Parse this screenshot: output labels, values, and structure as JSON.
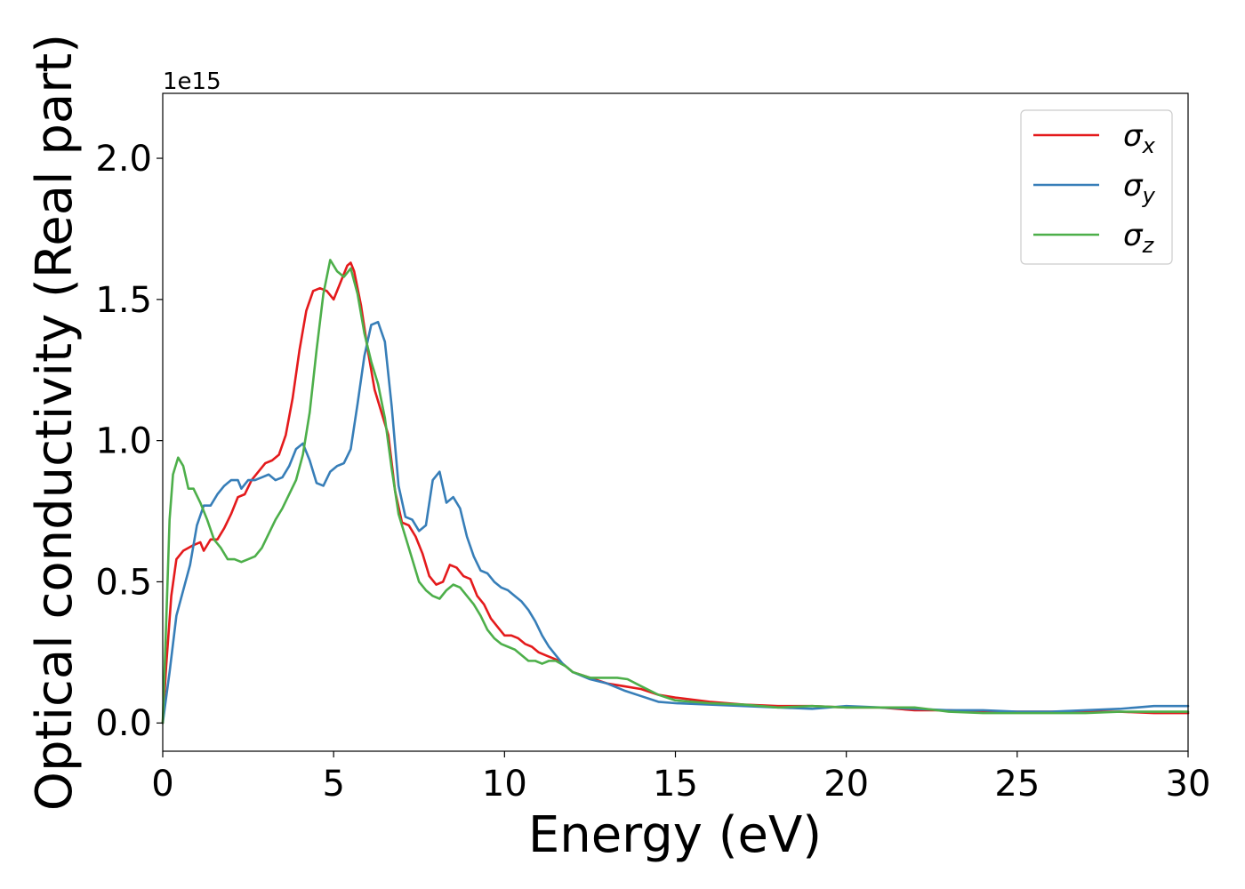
{
  "chart_data": {
    "type": "line",
    "title": "",
    "xlabel": "Energy (eV)",
    "ylabel": "Optical conductivity (Real part)",
    "y_offset_text": "1e15",
    "y_scale_factor": 1000000000000000.0,
    "xlim": [
      0,
      30
    ],
    "ylim": [
      -0.1,
      2.23
    ],
    "xticks": [
      0,
      5,
      10,
      15,
      20,
      25,
      30
    ],
    "xtick_labels": [
      "0",
      "5",
      "10",
      "15",
      "20",
      "25",
      "30"
    ],
    "yticks": [
      0.0,
      0.5,
      1.0,
      1.5,
      2.0
    ],
    "ytick_labels": [
      "0.0",
      "0.5",
      "1.0",
      "1.5",
      "2.0"
    ],
    "grid": false,
    "legend_position": "top-right",
    "series": [
      {
        "name": "σx",
        "legend_symbol": "σ",
        "legend_subscript": "x",
        "color": "#e41a1c",
        "points": [
          [
            0,
            0.0
          ],
          [
            0.1,
            0.2
          ],
          [
            0.25,
            0.45
          ],
          [
            0.4,
            0.58
          ],
          [
            0.6,
            0.61
          ],
          [
            0.9,
            0.63
          ],
          [
            1.1,
            0.64
          ],
          [
            1.2,
            0.61
          ],
          [
            1.4,
            0.65
          ],
          [
            1.6,
            0.65
          ],
          [
            1.8,
            0.69
          ],
          [
            2.0,
            0.74
          ],
          [
            2.2,
            0.8
          ],
          [
            2.4,
            0.81
          ],
          [
            2.6,
            0.86
          ],
          [
            2.8,
            0.89
          ],
          [
            3.0,
            0.92
          ],
          [
            3.2,
            0.93
          ],
          [
            3.4,
            0.95
          ],
          [
            3.6,
            1.02
          ],
          [
            3.8,
            1.15
          ],
          [
            4.0,
            1.32
          ],
          [
            4.2,
            1.46
          ],
          [
            4.4,
            1.53
          ],
          [
            4.6,
            1.54
          ],
          [
            4.8,
            1.53
          ],
          [
            5.0,
            1.5
          ],
          [
            5.2,
            1.56
          ],
          [
            5.4,
            1.62
          ],
          [
            5.5,
            1.63
          ],
          [
            5.6,
            1.6
          ],
          [
            5.8,
            1.48
          ],
          [
            6.0,
            1.32
          ],
          [
            6.2,
            1.18
          ],
          [
            6.4,
            1.1
          ],
          [
            6.6,
            1.02
          ],
          [
            6.8,
            0.82
          ],
          [
            7.0,
            0.71
          ],
          [
            7.2,
            0.7
          ],
          [
            7.4,
            0.66
          ],
          [
            7.6,
            0.6
          ],
          [
            7.8,
            0.52
          ],
          [
            8.0,
            0.49
          ],
          [
            8.2,
            0.5
          ],
          [
            8.4,
            0.56
          ],
          [
            8.6,
            0.55
          ],
          [
            8.8,
            0.52
          ],
          [
            9.0,
            0.51
          ],
          [
            9.2,
            0.45
          ],
          [
            9.4,
            0.42
          ],
          [
            9.6,
            0.37
          ],
          [
            9.8,
            0.34
          ],
          [
            10.0,
            0.31
          ],
          [
            10.2,
            0.31
          ],
          [
            10.4,
            0.3
          ],
          [
            10.6,
            0.28
          ],
          [
            10.8,
            0.27
          ],
          [
            11.0,
            0.25
          ],
          [
            11.2,
            0.24
          ],
          [
            11.4,
            0.23
          ],
          [
            11.6,
            0.22
          ],
          [
            12.0,
            0.18
          ],
          [
            12.5,
            0.16
          ],
          [
            13.0,
            0.14
          ],
          [
            13.5,
            0.13
          ],
          [
            14.0,
            0.12
          ],
          [
            14.5,
            0.1
          ],
          [
            15.0,
            0.09
          ],
          [
            16.0,
            0.075
          ],
          [
            17.0,
            0.065
          ],
          [
            18.0,
            0.06
          ],
          [
            19.0,
            0.06
          ],
          [
            20.0,
            0.055
          ],
          [
            21.0,
            0.055
          ],
          [
            22.0,
            0.045
          ],
          [
            23.0,
            0.045
          ],
          [
            24.0,
            0.04
          ],
          [
            25.0,
            0.04
          ],
          [
            26.0,
            0.04
          ],
          [
            27.0,
            0.04
          ],
          [
            28.0,
            0.04
          ],
          [
            29.0,
            0.035
          ],
          [
            30.0,
            0.035
          ]
        ]
      },
      {
        "name": "σy",
        "legend_symbol": "σ",
        "legend_subscript": "y",
        "color": "#377eb8",
        "points": [
          [
            0,
            0.0
          ],
          [
            0.2,
            0.18
          ],
          [
            0.4,
            0.38
          ],
          [
            0.6,
            0.47
          ],
          [
            0.8,
            0.56
          ],
          [
            1.0,
            0.7
          ],
          [
            1.2,
            0.77
          ],
          [
            1.4,
            0.77
          ],
          [
            1.6,
            0.81
          ],
          [
            1.8,
            0.84
          ],
          [
            2.0,
            0.86
          ],
          [
            2.2,
            0.86
          ],
          [
            2.3,
            0.83
          ],
          [
            2.5,
            0.86
          ],
          [
            2.7,
            0.86
          ],
          [
            2.9,
            0.87
          ],
          [
            3.1,
            0.88
          ],
          [
            3.3,
            0.86
          ],
          [
            3.5,
            0.87
          ],
          [
            3.7,
            0.91
          ],
          [
            3.9,
            0.97
          ],
          [
            4.1,
            0.99
          ],
          [
            4.3,
            0.93
          ],
          [
            4.5,
            0.85
          ],
          [
            4.7,
            0.84
          ],
          [
            4.9,
            0.89
          ],
          [
            5.1,
            0.91
          ],
          [
            5.3,
            0.92
          ],
          [
            5.5,
            0.97
          ],
          [
            5.7,
            1.13
          ],
          [
            5.9,
            1.3
          ],
          [
            6.1,
            1.41
          ],
          [
            6.3,
            1.42
          ],
          [
            6.5,
            1.35
          ],
          [
            6.7,
            1.12
          ],
          [
            6.9,
            0.84
          ],
          [
            7.1,
            0.73
          ],
          [
            7.3,
            0.72
          ],
          [
            7.5,
            0.68
          ],
          [
            7.7,
            0.7
          ],
          [
            7.9,
            0.86
          ],
          [
            8.1,
            0.89
          ],
          [
            8.3,
            0.78
          ],
          [
            8.5,
            0.8
          ],
          [
            8.7,
            0.76
          ],
          [
            8.9,
            0.66
          ],
          [
            9.1,
            0.59
          ],
          [
            9.3,
            0.54
          ],
          [
            9.5,
            0.53
          ],
          [
            9.7,
            0.5
          ],
          [
            9.9,
            0.48
          ],
          [
            10.1,
            0.47
          ],
          [
            10.3,
            0.45
          ],
          [
            10.5,
            0.43
          ],
          [
            10.7,
            0.4
          ],
          [
            10.9,
            0.36
          ],
          [
            11.1,
            0.31
          ],
          [
            11.3,
            0.27
          ],
          [
            11.5,
            0.24
          ],
          [
            11.7,
            0.21
          ],
          [
            12.0,
            0.18
          ],
          [
            12.5,
            0.155
          ],
          [
            13.0,
            0.14
          ],
          [
            13.5,
            0.115
          ],
          [
            14.0,
            0.095
          ],
          [
            14.5,
            0.075
          ],
          [
            15.0,
            0.07
          ],
          [
            16.0,
            0.065
          ],
          [
            17.0,
            0.06
          ],
          [
            18.0,
            0.055
          ],
          [
            19.0,
            0.05
          ],
          [
            20.0,
            0.06
          ],
          [
            21.0,
            0.055
          ],
          [
            22.0,
            0.05
          ],
          [
            23.0,
            0.045
          ],
          [
            24.0,
            0.045
          ],
          [
            25.0,
            0.04
          ],
          [
            26.0,
            0.04
          ],
          [
            27.0,
            0.045
          ],
          [
            28.0,
            0.05
          ],
          [
            28.5,
            0.055
          ],
          [
            29.0,
            0.06
          ],
          [
            30.0,
            0.06
          ]
        ]
      },
      {
        "name": "σz",
        "legend_symbol": "σ",
        "legend_subscript": "z",
        "color": "#4daf4a",
        "points": [
          [
            0,
            0.0
          ],
          [
            0.1,
            0.35
          ],
          [
            0.2,
            0.72
          ],
          [
            0.3,
            0.88
          ],
          [
            0.45,
            0.94
          ],
          [
            0.6,
            0.91
          ],
          [
            0.75,
            0.83
          ],
          [
            0.9,
            0.83
          ],
          [
            1.1,
            0.78
          ],
          [
            1.3,
            0.72
          ],
          [
            1.5,
            0.65
          ],
          [
            1.7,
            0.62
          ],
          [
            1.9,
            0.58
          ],
          [
            2.1,
            0.58
          ],
          [
            2.3,
            0.57
          ],
          [
            2.5,
            0.58
          ],
          [
            2.7,
            0.59
          ],
          [
            2.9,
            0.62
          ],
          [
            3.1,
            0.67
          ],
          [
            3.3,
            0.72
          ],
          [
            3.5,
            0.76
          ],
          [
            3.7,
            0.81
          ],
          [
            3.9,
            0.86
          ],
          [
            4.1,
            0.95
          ],
          [
            4.3,
            1.1
          ],
          [
            4.5,
            1.32
          ],
          [
            4.7,
            1.52
          ],
          [
            4.9,
            1.64
          ],
          [
            5.1,
            1.6
          ],
          [
            5.3,
            1.58
          ],
          [
            5.5,
            1.61
          ],
          [
            5.7,
            1.52
          ],
          [
            5.9,
            1.38
          ],
          [
            6.1,
            1.28
          ],
          [
            6.3,
            1.2
          ],
          [
            6.5,
            1.08
          ],
          [
            6.7,
            0.9
          ],
          [
            6.9,
            0.74
          ],
          [
            7.1,
            0.66
          ],
          [
            7.3,
            0.58
          ],
          [
            7.5,
            0.5
          ],
          [
            7.7,
            0.47
          ],
          [
            7.9,
            0.45
          ],
          [
            8.1,
            0.44
          ],
          [
            8.3,
            0.47
          ],
          [
            8.5,
            0.49
          ],
          [
            8.7,
            0.48
          ],
          [
            8.9,
            0.45
          ],
          [
            9.1,
            0.42
          ],
          [
            9.3,
            0.38
          ],
          [
            9.5,
            0.33
          ],
          [
            9.7,
            0.3
          ],
          [
            9.9,
            0.28
          ],
          [
            10.1,
            0.27
          ],
          [
            10.3,
            0.26
          ],
          [
            10.5,
            0.24
          ],
          [
            10.7,
            0.22
          ],
          [
            10.9,
            0.22
          ],
          [
            11.1,
            0.21
          ],
          [
            11.3,
            0.22
          ],
          [
            11.5,
            0.22
          ],
          [
            11.8,
            0.2
          ],
          [
            12.0,
            0.18
          ],
          [
            12.5,
            0.16
          ],
          [
            13.0,
            0.16
          ],
          [
            13.3,
            0.16
          ],
          [
            13.6,
            0.155
          ],
          [
            14.0,
            0.13
          ],
          [
            14.5,
            0.1
          ],
          [
            15.0,
            0.08
          ],
          [
            16.0,
            0.07
          ],
          [
            17.0,
            0.065
          ],
          [
            18.0,
            0.055
          ],
          [
            19.0,
            0.06
          ],
          [
            20.0,
            0.055
          ],
          [
            21.0,
            0.055
          ],
          [
            22.0,
            0.055
          ],
          [
            23.0,
            0.04
          ],
          [
            24.0,
            0.035
          ],
          [
            25.0,
            0.035
          ],
          [
            26.0,
            0.035
          ],
          [
            27.0,
            0.035
          ],
          [
            28.0,
            0.04
          ],
          [
            29.0,
            0.04
          ],
          [
            30.0,
            0.04
          ]
        ]
      }
    ]
  }
}
